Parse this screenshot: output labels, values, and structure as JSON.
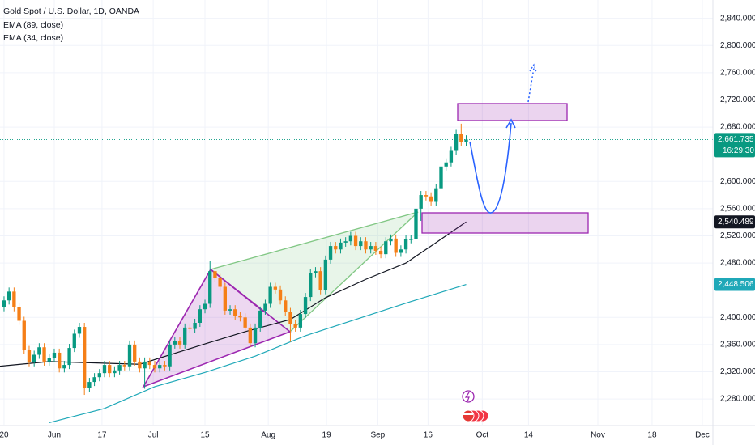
{
  "chart_data": {
    "type": "candlestick",
    "title": "Gold Spot / U.S. Dollar, 1D, OANDA",
    "up_color": "#089981",
    "down_color": "#f57f17",
    "x": [
      0,
      1,
      2,
      3,
      4,
      5,
      6,
      7,
      8,
      9,
      10,
      11,
      12,
      13,
      14,
      15,
      16,
      17,
      18,
      19,
      20,
      21,
      22,
      23,
      24,
      25,
      26,
      27,
      28,
      29,
      30,
      31,
      32,
      33,
      34,
      35,
      36,
      37,
      38,
      39,
      40,
      41,
      42,
      43,
      44,
      45,
      46,
      47,
      48,
      49,
      50,
      51,
      52,
      53,
      54,
      55,
      56,
      57,
      58,
      59,
      60,
      61,
      62,
      63,
      64,
      65,
      66,
      67,
      68,
      69,
      70,
      71,
      72,
      73,
      74,
      75,
      76,
      77,
      78,
      79,
      80,
      81,
      82,
      83,
      84,
      85,
      86,
      87,
      88,
      89,
      90,
      91,
      92
    ],
    "open": [
      2415,
      2425,
      2438,
      2415,
      2395,
      2352,
      2334,
      2345,
      2356,
      2335,
      2340,
      2348,
      2325,
      2330,
      2355,
      2376,
      2386,
      2296,
      2305,
      2312,
      2318,
      2330,
      2318,
      2322,
      2330,
      2328,
      2360,
      2335,
      2325,
      2335,
      2330,
      2325,
      2330,
      2328,
      2360,
      2365,
      2360,
      2385,
      2383,
      2392,
      2412,
      2420,
      2468,
      2458,
      2445,
      2410,
      2412,
      2402,
      2400,
      2385,
      2362,
      2385,
      2410,
      2420,
      2445,
      2441,
      2425,
      2408,
      2390,
      2385,
      2405,
      2430,
      2465,
      2468,
      2440,
      2485,
      2505,
      2500,
      2510,
      2512,
      2520,
      2505,
      2512,
      2500,
      2505,
      2498,
      2493,
      2512,
      2516,
      2495,
      2500,
      2515,
      2515,
      2560,
      2580,
      2578,
      2570,
      2590,
      2622,
      2628,
      2645,
      2670,
      2658
    ],
    "high": [
      2431,
      2444,
      2444,
      2421,
      2401,
      2358,
      2351,
      2362,
      2362,
      2346,
      2354,
      2354,
      2336,
      2361,
      2382,
      2392,
      2392,
      2311,
      2318,
      2324,
      2336,
      2336,
      2328,
      2336,
      2336,
      2366,
      2366,
      2341,
      2341,
      2341,
      2336,
      2336,
      2336,
      2366,
      2371,
      2371,
      2391,
      2391,
      2398,
      2418,
      2426,
      2483,
      2474,
      2464,
      2451,
      2418,
      2418,
      2408,
      2406,
      2391,
      2391,
      2416,
      2426,
      2451,
      2451,
      2447,
      2431,
      2414,
      2396,
      2411,
      2436,
      2471,
      2474,
      2474,
      2491,
      2511,
      2511,
      2516,
      2518,
      2526,
      2526,
      2518,
      2518,
      2511,
      2511,
      2504,
      2518,
      2522,
      2522,
      2506,
      2521,
      2521,
      2566,
      2586,
      2586,
      2584,
      2596,
      2628,
      2634,
      2651,
      2676,
      2685,
      2668
    ],
    "low": [
      2409,
      2419,
      2409,
      2389,
      2346,
      2328,
      2328,
      2339,
      2329,
      2329,
      2334,
      2319,
      2319,
      2324,
      2349,
      2370,
      2286,
      2290,
      2299,
      2306,
      2312,
      2312,
      2312,
      2316,
      2322,
      2322,
      2329,
      2319,
      2295,
      2324,
      2319,
      2319,
      2322,
      2322,
      2354,
      2354,
      2354,
      2377,
      2377,
      2386,
      2406,
      2414,
      2452,
      2439,
      2404,
      2404,
      2396,
      2394,
      2379,
      2356,
      2356,
      2379,
      2404,
      2414,
      2435,
      2419,
      2402,
      2364,
      2379,
      2379,
      2399,
      2424,
      2459,
      2434,
      2434,
      2479,
      2494,
      2494,
      2504,
      2506,
      2499,
      2499,
      2494,
      2494,
      2492,
      2487,
      2487,
      2506,
      2489,
      2489,
      2494,
      2509,
      2509,
      2542,
      2572,
      2564,
      2564,
      2584,
      2616,
      2622,
      2639,
      2652,
      2652
    ],
    "close": [
      2425,
      2438,
      2415,
      2395,
      2352,
      2334,
      2345,
      2356,
      2335,
      2340,
      2348,
      2325,
      2330,
      2355,
      2376,
      2386,
      2296,
      2305,
      2312,
      2318,
      2330,
      2318,
      2322,
      2330,
      2328,
      2360,
      2335,
      2325,
      2335,
      2330,
      2325,
      2330,
      2328,
      2360,
      2365,
      2360,
      2385,
      2383,
      2392,
      2412,
      2420,
      2468,
      2458,
      2445,
      2410,
      2412,
      2402,
      2400,
      2385,
      2362,
      2385,
      2410,
      2420,
      2445,
      2441,
      2425,
      2408,
      2390,
      2385,
      2405,
      2430,
      2465,
      2468,
      2440,
      2485,
      2505,
      2500,
      2510,
      2512,
      2520,
      2505,
      2512,
      2500,
      2505,
      2498,
      2493,
      2512,
      2516,
      2495,
      2500,
      2515,
      2515,
      2560,
      2580,
      2578,
      2570,
      2590,
      2622,
      2628,
      2645,
      2670,
      2658,
      2661.735
    ],
    "lines": [
      {
        "name": "EMA (89, close)",
        "color": "#1fa8b8",
        "x": [
          9,
          20,
          30,
          40,
          50,
          60,
          70,
          80,
          92
        ],
        "values": [
          2245,
          2266,
          2298,
          2319,
          2343,
          2373,
          2397,
          2421,
          2448.506
        ]
      },
      {
        "name": "EMA (34, close)",
        "color": "#131722",
        "x": [
          -1,
          9,
          27,
          40,
          48,
          57,
          64,
          72,
          80,
          86,
          92
        ],
        "values": [
          2328,
          2335,
          2331,
          2361,
          2379,
          2397,
          2429,
          2456,
          2480,
          2510,
          2540.489
        ]
      }
    ],
    "price_labels": [
      {
        "value": 2661.735,
        "label": "2,661.735",
        "color": "#089981",
        "sub": "16:29:30"
      },
      {
        "value": 2540.489,
        "label": "2,540.489",
        "color": "#131722"
      },
      {
        "value": 2448.506,
        "label": "2,448.506",
        "color": "#1fa8b8"
      }
    ],
    "ylim": [
      2242,
      2867
    ],
    "yticks": [
      {
        "value": 2840,
        "label": "2,840.000"
      },
      {
        "value": 2800,
        "label": "2,800.000"
      },
      {
        "value": 2760,
        "label": "2,760.000"
      },
      {
        "value": 2720,
        "label": "2,720.000"
      },
      {
        "value": 2680,
        "label": "2,680.000"
      },
      {
        "value": 2600,
        "label": "2,600.000"
      },
      {
        "value": 2560,
        "label": "2,560.000"
      },
      {
        "value": 2520,
        "label": "2,520.000"
      },
      {
        "value": 2480,
        "label": "2,480.000"
      },
      {
        "value": 2400,
        "label": "2,400.000"
      },
      {
        "value": 2360,
        "label": "2,360.000"
      },
      {
        "value": 2320,
        "label": "2,320.000"
      },
      {
        "value": 2280,
        "label": "2,280.000"
      }
    ],
    "xlim": [
      -0.8,
      141.1
    ],
    "xticks": [
      {
        "value": 0,
        "label": "20"
      },
      {
        "value": 10,
        "label": "Jun"
      },
      {
        "value": 19.5,
        "label": "17"
      },
      {
        "value": 29.7,
        "label": "Jul"
      },
      {
        "value": 40,
        "label": "15"
      },
      {
        "value": 52.6,
        "label": "Aug"
      },
      {
        "value": 64.2,
        "label": "19"
      },
      {
        "value": 74.4,
        "label": "Sep"
      },
      {
        "value": 84.4,
        "label": "16"
      },
      {
        "value": 95.2,
        "label": "Oct"
      },
      {
        "value": 104.4,
        "label": "14"
      },
      {
        "value": 118.2,
        "label": "Nov"
      },
      {
        "value": 129,
        "label": "18"
      },
      {
        "value": 139,
        "label": "Dec"
      }
    ],
    "grid": true
  }
}
